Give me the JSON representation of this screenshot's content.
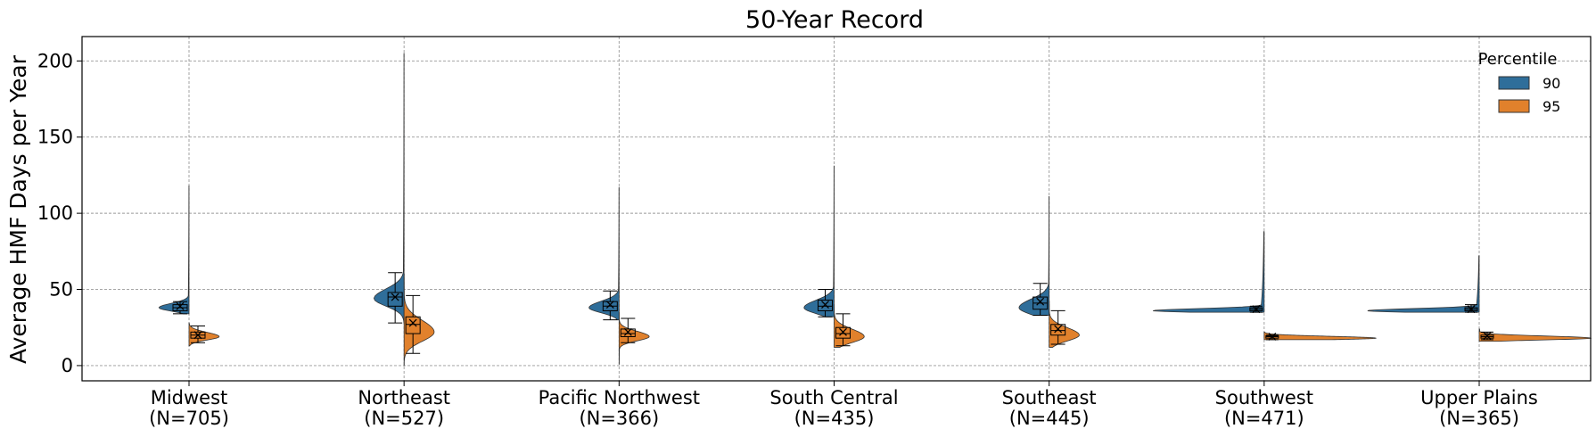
{
  "chart_data": {
    "type": "violin",
    "title": "50-Year Record",
    "ylabel": "Average HMF Days per Year",
    "xlabel": "",
    "ylim": [
      -10,
      216
    ],
    "yticks": [
      0,
      50,
      100,
      150,
      200
    ],
    "grid": true,
    "legend": {
      "title": "Percentile",
      "placement": "top-right"
    },
    "categories": [
      {
        "name": "Midwest",
        "n_label": "(N=705)"
      },
      {
        "name": "Northeast",
        "n_label": "(N=527)"
      },
      {
        "name": "Pacific Northwest",
        "n_label": "(N=366)"
      },
      {
        "name": "South Central",
        "n_label": "(N=435)"
      },
      {
        "name": "Southeast",
        "n_label": "(N=445)"
      },
      {
        "name": "Southwest",
        "n_label": "(N=471)"
      },
      {
        "name": "Upper Plains",
        "n_label": "(N=365)"
      }
    ],
    "series": [
      {
        "name": "90",
        "color": "#2f6e9a",
        "stats": [
          {
            "min": 34,
            "max": 118,
            "q1": 36,
            "median": 38,
            "q3": 40,
            "mean": 39,
            "whisker_low": 34,
            "whisker_high": 42,
            "peak": 38
          },
          {
            "min": 28,
            "max": 205,
            "q1": 39,
            "median": 45,
            "q3": 48,
            "mean": 45,
            "whisker_low": 28,
            "whisker_high": 61,
            "peak": 44
          },
          {
            "min": 30,
            "max": 117,
            "q1": 36,
            "median": 39,
            "q3": 42,
            "mean": 40,
            "whisker_low": 30,
            "whisker_high": 49,
            "peak": 38
          },
          {
            "min": 32,
            "max": 131,
            "q1": 36,
            "median": 39,
            "q3": 43,
            "mean": 40,
            "whisker_low": 32,
            "whisker_high": 50,
            "peak": 38
          },
          {
            "min": 33,
            "max": 111,
            "q1": 37,
            "median": 41,
            "q3": 45,
            "mean": 42,
            "whisker_low": 33,
            "whisker_high": 54,
            "peak": 38
          },
          {
            "min": 35,
            "max": 88,
            "q1": 36,
            "median": 37,
            "q3": 38,
            "mean": 37,
            "whisker_low": 35,
            "whisker_high": 39,
            "peak": 36
          },
          {
            "min": 35,
            "max": 72,
            "q1": 36,
            "median": 37,
            "q3": 38,
            "mean": 37,
            "whisker_low": 35,
            "whisker_high": 40,
            "peak": 36
          }
        ]
      },
      {
        "name": "95",
        "color": "#e1812c",
        "stats": [
          {
            "min": 13,
            "max": 28,
            "q1": 18,
            "median": 20,
            "q3": 22,
            "mean": 20,
            "whisker_low": 15,
            "whisker_high": 26,
            "peak": 19
          },
          {
            "min": 0,
            "max": 60,
            "q1": 21,
            "median": 27,
            "q3": 32,
            "mean": 28,
            "whisker_low": 8,
            "whisker_high": 46,
            "peak": 22
          },
          {
            "min": 1,
            "max": 35,
            "q1": 19,
            "median": 21,
            "q3": 24,
            "mean": 22,
            "whisker_low": 15,
            "whisker_high": 31,
            "peak": 19
          },
          {
            "min": 12,
            "max": 40,
            "q1": 18,
            "median": 21,
            "q3": 25,
            "mean": 22,
            "whisker_low": 13,
            "whisker_high": 34,
            "peak": 19
          },
          {
            "min": 12,
            "max": 42,
            "q1": 20,
            "median": 23,
            "q3": 27,
            "mean": 24,
            "whisker_low": 14,
            "whisker_high": 36,
            "peak": 20
          },
          {
            "min": 17,
            "max": 22,
            "q1": 18,
            "median": 19,
            "q3": 19.5,
            "mean": 19,
            "whisker_low": 17,
            "whisker_high": 20,
            "peak": 18
          },
          {
            "min": 16,
            "max": 24,
            "q1": 18,
            "median": 19,
            "q3": 20,
            "mean": 19.5,
            "whisker_low": 17,
            "whisker_high": 22,
            "peak": 18
          }
        ]
      }
    ]
  }
}
